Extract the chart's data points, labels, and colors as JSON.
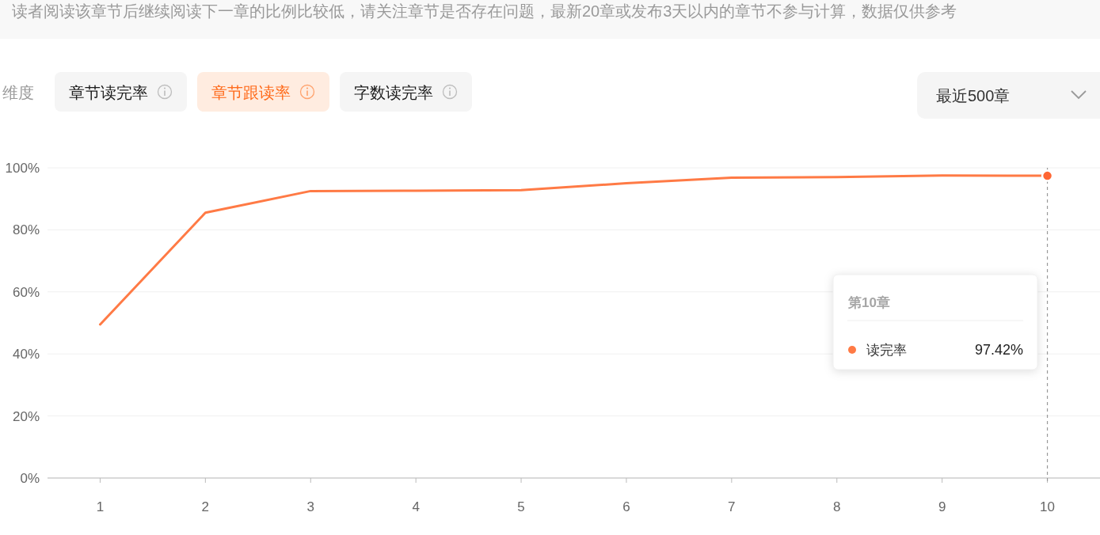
{
  "chart_data": {
    "type": "line",
    "annotations": [
      "读者阅读该章节后继续阅读下一章的比例比较低，请关注章节是否存在问题，最新20章或发布3天以内的章节不参与计算，数据仅供参考",
      "维度",
      "章节读完率",
      "章节跟读率",
      "字数读完率",
      "最近500章",
      "第10章",
      "97.42%"
    ],
    "categories": [
      "1",
      "2",
      "3",
      "4",
      "5",
      "6",
      "7",
      "8",
      "9",
      "10"
    ],
    "series": [
      {
        "name": "读完率",
        "color": "#ff7a45",
        "values": [
          49.5,
          85.5,
          92.5,
          92.6,
          92.8,
          95,
          96.8,
          97,
          97.5,
          97.42
        ]
      },
      {
        "type": "scatter",
        "x": [
          "10"
        ],
        "values": [
          97.42
        ],
        "color": "#ff6633"
      }
    ],
    "ylim": [
      0,
      100
    ],
    "yticks": [
      {
        "value": 0,
        "label": "0%"
      },
      {
        "value": 20,
        "label": "20%"
      },
      {
        "value": 40,
        "label": "40%"
      },
      {
        "value": 60,
        "label": "60%"
      },
      {
        "value": 80,
        "label": "80%"
      },
      {
        "value": 100,
        "label": "100%"
      }
    ],
    "grid": "y",
    "legend": "right",
    "ref_lines": [
      {
        "axis": "x",
        "value": "10",
        "color": "#999999",
        "line_style": "dashed"
      }
    ]
  }
}
